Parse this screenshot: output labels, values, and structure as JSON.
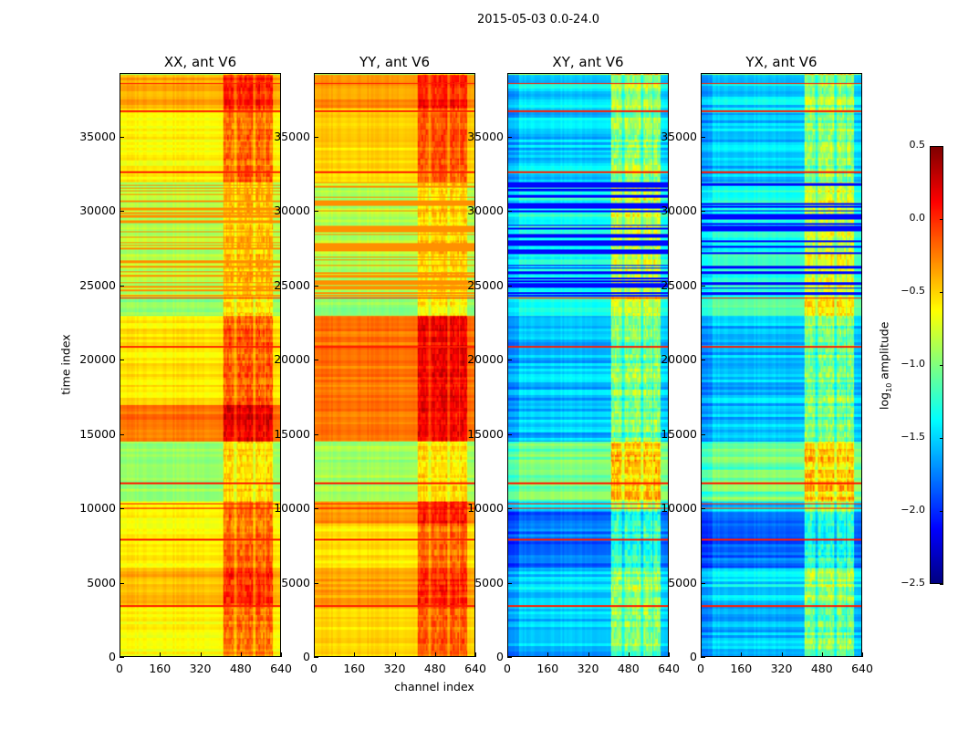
{
  "chart_data": {
    "type": "heatmap",
    "title": "2015-05-03 0.0-24.0",
    "xlabel": "channel index",
    "ylabel": "time index",
    "xlim": [
      0,
      640
    ],
    "ylim": [
      0,
      39300
    ],
    "xticks": [
      0,
      160,
      320,
      480,
      640
    ],
    "yticks": [
      0,
      5000,
      10000,
      15000,
      20000,
      25000,
      30000,
      35000
    ],
    "colorbar": {
      "label": "log10 amplitude",
      "label_base": "log",
      "label_sub": "10",
      "label_rest": " amplitude",
      "range": [
        -2.5,
        0.5
      ],
      "ticks": [
        "0.5",
        "0.0",
        "−0.5",
        "−1.0",
        "−1.5",
        "−2.0",
        "−2.5"
      ],
      "tick_values": [
        0.5,
        0.0,
        -0.5,
        -1.0,
        -1.5,
        -2.0,
        -2.5
      ],
      "colormap": "jet"
    },
    "rfi_channel_range": [
      410,
      610
    ],
    "flag_lines": [
      3400,
      7900,
      10000,
      10300,
      11700,
      20900,
      24200,
      32700,
      36800,
      38700
    ],
    "panels": [
      {
        "title": "XX, ant V6",
        "rfi_boost": 0.45,
        "bands": [
          [
            0,
            3400,
            -0.62
          ],
          [
            3400,
            6000,
            -0.4
          ],
          [
            6000,
            10500,
            -0.6
          ],
          [
            10500,
            14500,
            -0.9
          ],
          [
            14500,
            17000,
            -0.2
          ],
          [
            17000,
            23000,
            -0.55
          ],
          [
            23000,
            24300,
            -0.95
          ],
          [
            24300,
            32000,
            -0.85
          ],
          [
            32000,
            37000,
            -0.6
          ],
          [
            37000,
            39300,
            -0.38
          ]
        ]
      },
      {
        "title": "YY, ant V6",
        "rfi_boost": 0.4,
        "bands": [
          [
            0,
            3400,
            -0.5
          ],
          [
            3400,
            6000,
            -0.35
          ],
          [
            6000,
            9000,
            -0.55
          ],
          [
            9000,
            10500,
            -0.3
          ],
          [
            10500,
            14500,
            -0.9
          ],
          [
            14500,
            23000,
            -0.22
          ],
          [
            23000,
            24300,
            -0.95
          ],
          [
            24300,
            32000,
            -0.85
          ],
          [
            32000,
            37000,
            -0.5
          ],
          [
            37000,
            39300,
            -0.3
          ]
        ]
      },
      {
        "title": "XY, ant V6",
        "rfi_boost": 0.6,
        "bands": [
          [
            0,
            3400,
            -1.55
          ],
          [
            3400,
            6000,
            -1.45
          ],
          [
            6000,
            9800,
            -1.8
          ],
          [
            9800,
            10500,
            -1.5
          ],
          [
            10500,
            14500,
            -1.05
          ],
          [
            14500,
            23000,
            -1.55
          ],
          [
            23000,
            24300,
            -1.2
          ],
          [
            24300,
            32000,
            -1.3
          ],
          [
            32000,
            37000,
            -1.5
          ],
          [
            37000,
            39300,
            -1.45
          ]
        ]
      },
      {
        "title": "YX, ant V6",
        "rfi_boost": 0.6,
        "bands": [
          [
            0,
            3400,
            -1.55
          ],
          [
            3400,
            6000,
            -1.45
          ],
          [
            6000,
            9800,
            -1.8
          ],
          [
            9800,
            10500,
            -1.5
          ],
          [
            10500,
            14500,
            -1.05
          ],
          [
            14500,
            23000,
            -1.55
          ],
          [
            23000,
            24300,
            -1.2
          ],
          [
            24300,
            32000,
            -1.3
          ],
          [
            32000,
            37000,
            -1.5
          ],
          [
            37000,
            39300,
            -1.45
          ]
        ]
      }
    ]
  }
}
